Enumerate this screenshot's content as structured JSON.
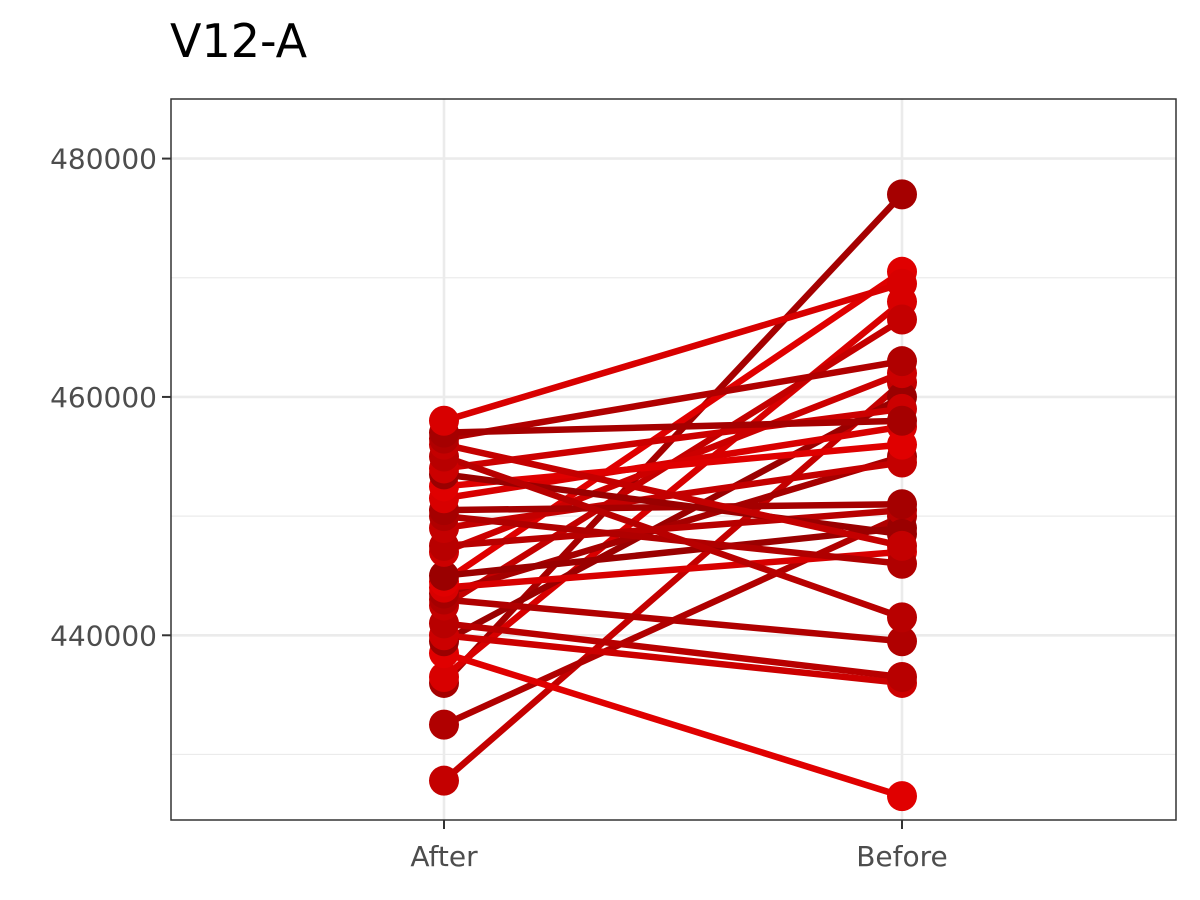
{
  "chart_data": {
    "type": "line",
    "title": "V12-A",
    "xlabel": "",
    "ylabel": "",
    "categories": [
      "After",
      "Before"
    ],
    "ylim": [
      424500,
      485000
    ],
    "yticks": [
      440000,
      460000,
      480000
    ],
    "ytick_labels": [
      "440000",
      "460000",
      "480000"
    ],
    "grid": true,
    "legend": "none",
    "colors": [
      "#c40000",
      "#b00000",
      "#a50000",
      "#d80000",
      "#e00000",
      "#9a0000",
      "#cc0000",
      "#b80000"
    ],
    "series": [
      {
        "values": [
          427800,
          461200
        ]
      },
      {
        "values": [
          432500,
          450000
        ]
      },
      {
        "values": [
          436000,
          477000
        ]
      },
      {
        "values": [
          436500,
          468000
        ]
      },
      {
        "values": [
          438500,
          426500
        ]
      },
      {
        "values": [
          439500,
          460000
        ]
      },
      {
        "values": [
          440000,
          436000
        ]
      },
      {
        "values": [
          441000,
          436500
        ]
      },
      {
        "values": [
          442500,
          466500
        ]
      },
      {
        "values": [
          443000,
          439500
        ]
      },
      {
        "values": [
          443500,
          455000
        ]
      },
      {
        "values": [
          444000,
          447000
        ]
      },
      {
        "values": [
          444500,
          470500
        ]
      },
      {
        "values": [
          445000,
          449000
        ]
      },
      {
        "values": [
          447000,
          462000
        ]
      },
      {
        "values": [
          447500,
          450500
        ]
      },
      {
        "values": [
          449000,
          454500
        ]
      },
      {
        "values": [
          450000,
          446000
        ]
      },
      {
        "values": [
          450500,
          451000
        ]
      },
      {
        "values": [
          451500,
          457500
        ]
      },
      {
        "values": [
          452500,
          456000
        ]
      },
      {
        "values": [
          453500,
          448500
        ]
      },
      {
        "values": [
          454000,
          459000
        ]
      },
      {
        "values": [
          455000,
          441500
        ]
      },
      {
        "values": [
          456000,
          447500
        ]
      },
      {
        "values": [
          456500,
          463000
        ]
      },
      {
        "values": [
          457000,
          458000
        ]
      },
      {
        "values": [
          458000,
          469500
        ]
      }
    ]
  }
}
